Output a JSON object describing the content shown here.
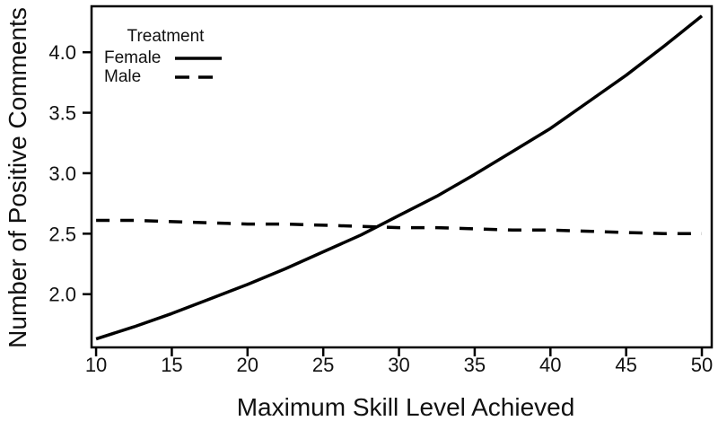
{
  "figure": {
    "background": "#ffffff",
    "line_color": "#000000",
    "text_color": "#111111"
  },
  "chart_data": {
    "type": "line",
    "xlabel": "Maximum Skill Level Achieved",
    "ylabel": "Number of Positive Comments",
    "x": [
      10,
      12.5,
      15,
      17.5,
      20,
      22.5,
      25,
      27.5,
      30,
      32.5,
      35,
      37.5,
      40,
      42.5,
      45,
      47.5,
      50
    ],
    "series": [
      {
        "name": "Female",
        "style": "solid",
        "values": [
          1.63,
          1.73,
          1.84,
          1.96,
          2.08,
          2.21,
          2.35,
          2.49,
          2.65,
          2.81,
          2.99,
          3.18,
          3.37,
          3.59,
          3.81,
          4.05,
          4.3
        ]
      },
      {
        "name": "Male",
        "style": "dashed",
        "values": [
          2.61,
          2.61,
          2.6,
          2.59,
          2.58,
          2.58,
          2.57,
          2.56,
          2.55,
          2.55,
          2.54,
          2.53,
          2.53,
          2.52,
          2.51,
          2.5,
          2.5
        ]
      }
    ],
    "xticks": [
      "10",
      "15",
      "20",
      "25",
      "30",
      "35",
      "40",
      "45",
      "50"
    ],
    "yticks": [
      "2.0",
      "2.5",
      "3.0",
      "3.5",
      "4.0"
    ],
    "xlim": [
      9.7,
      50.65
    ],
    "ylim": [
      1.56,
      4.38
    ],
    "grid": false,
    "legend": {
      "title": "Treatment",
      "position": "top-left",
      "entries": [
        "Female",
        "Male"
      ]
    },
    "annotations": {
      "crossover_point": {
        "x": 29,
        "y": 2.56
      }
    }
  }
}
